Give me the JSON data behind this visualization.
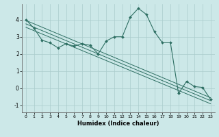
{
  "xlabel": "Humidex (Indice chaleur)",
  "background_color": "#cce8e8",
  "line_color": "#2d6e62",
  "grid_color": "#aacccc",
  "xlim": [
    -0.5,
    23.5
  ],
  "ylim": [
    -1.4,
    4.9
  ],
  "xticks": [
    0,
    1,
    2,
    3,
    4,
    5,
    6,
    7,
    8,
    9,
    10,
    11,
    12,
    13,
    14,
    15,
    16,
    17,
    18,
    19,
    20,
    21,
    22,
    23
  ],
  "yticks": [
    -1,
    0,
    1,
    2,
    3,
    4
  ],
  "series_main": {
    "x": [
      0,
      1,
      2,
      3,
      4,
      5,
      6,
      7,
      8,
      9,
      10,
      11,
      12,
      13,
      14,
      15,
      16,
      17,
      18,
      19,
      20,
      21,
      22,
      23
    ],
    "y": [
      4.0,
      3.5,
      2.8,
      2.65,
      2.35,
      2.6,
      2.45,
      2.6,
      2.5,
      2.0,
      2.75,
      3.0,
      3.0,
      4.15,
      4.65,
      4.3,
      3.3,
      2.65,
      2.65,
      -0.3,
      0.4,
      0.1,
      0.05,
      -0.65
    ]
  },
  "trend_lines": [
    {
      "x0": 0,
      "y0": 3.95,
      "x1": 23,
      "y1": -0.55
    },
    {
      "x0": 0,
      "y0": 3.75,
      "x1": 23,
      "y1": -0.72
    },
    {
      "x0": 0,
      "y0": 3.55,
      "x1": 23,
      "y1": -0.9
    }
  ]
}
